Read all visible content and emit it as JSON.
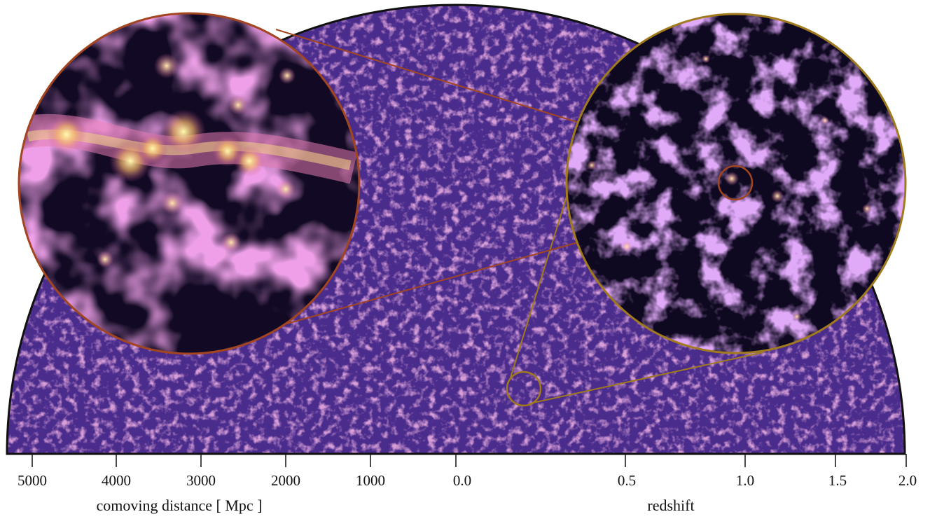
{
  "colors": {
    "background": "#ffffff",
    "survey_fill": "#4a2c8c",
    "outline": "#111111",
    "zoom_small_ring": "#a07a1c",
    "zoom_large_ring": "#a24520",
    "filament": "#e07ab8",
    "node_hot": "#fff6a0"
  },
  "axis_left": {
    "title": "comoving distance [ Mpc ]",
    "ticks": [
      "5000",
      "4000",
      "3000",
      "2000",
      "1000"
    ]
  },
  "axis_center": {
    "tick": "0.0"
  },
  "axis_right": {
    "title": "redshift",
    "ticks": [
      "0.5",
      "1.0",
      "1.5",
      "2.0"
    ]
  },
  "panels": [
    {
      "name": "survey-half-disc",
      "icon": "cosmic-web-texture"
    },
    {
      "name": "zoom-level-1",
      "icon": "cosmic-web-medium-zoom"
    },
    {
      "name": "zoom-level-2",
      "icon": "halo-cluster-high-zoom"
    }
  ]
}
